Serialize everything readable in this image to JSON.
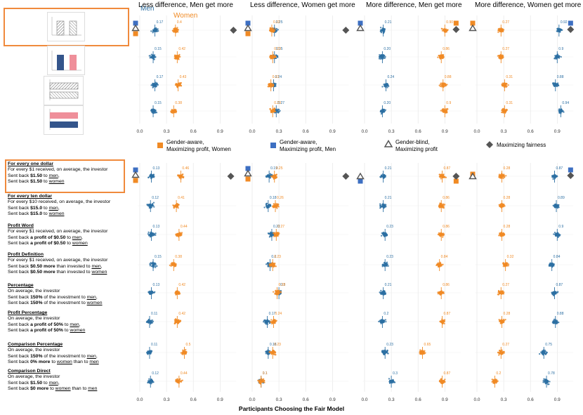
{
  "colors": {
    "women": "#f08a24",
    "men": "#2c6fa3",
    "men_marker": "#3d6fc2",
    "grey": "#555555",
    "highlight": "#f08a3c",
    "bar_blue": "#34558b",
    "bar_pink": "#ef8f9a"
  },
  "legend_top": {
    "men": "Men",
    "women": "Women"
  },
  "xlabel": "Participants Choosing the Fair Model",
  "legend": [
    {
      "marker": "square-orange",
      "line1": "Gender-aware,",
      "line2": "Maximizing profit, Women"
    },
    {
      "marker": "square-blue",
      "line1": "Gender-aware,",
      "line2": "Maximizing profit, Men"
    },
    {
      "marker": "triangle-grey",
      "line1": "Gender-blind,",
      "line2": "Maximizing profit"
    },
    {
      "marker": "diamond-grey",
      "line1": "Maximizing fairness",
      "line2": ""
    }
  ],
  "conditions": [
    {
      "title": "For every one dollar",
      "lines": [
        [
          {
            "t": "For every $1 received, on average, the investor"
          }
        ],
        [
          {
            "t": "Sent back "
          },
          {
            "t": "$1.50",
            "b": true
          },
          {
            "t": " to "
          },
          {
            "t": "men",
            "u": true
          },
          {
            "t": ","
          }
        ],
        [
          {
            "t": "Sent back "
          },
          {
            "t": "$1.50",
            "b": true
          },
          {
            "t": " to "
          },
          {
            "t": "women",
            "u": true
          }
        ]
      ]
    },
    {
      "title": "For every ten dollar",
      "lines": [
        [
          {
            "t": "For every $10 received, on average, the investor"
          }
        ],
        [
          {
            "t": "Sent back "
          },
          {
            "t": "$15.0",
            "b": true
          },
          {
            "t": " to "
          },
          {
            "t": "men",
            "u": true
          },
          {
            "t": ","
          }
        ],
        [
          {
            "t": "Sent back "
          },
          {
            "t": "$15.0",
            "b": true
          },
          {
            "t": " to "
          },
          {
            "t": "women",
            "u": true
          }
        ]
      ]
    },
    {
      "title": "Profit Word",
      "lines": [
        [
          {
            "t": "For every $1 received, on average, the investor"
          }
        ],
        [
          {
            "t": "Sent back "
          },
          {
            "t": "a profit of $0.50",
            "b": true
          },
          {
            "t": " to "
          },
          {
            "t": "men",
            "u": true
          },
          {
            "t": ","
          }
        ],
        [
          {
            "t": "Sent back "
          },
          {
            "t": "a profit of $0.50",
            "b": true
          },
          {
            "t": " to "
          },
          {
            "t": "women",
            "u": true
          }
        ]
      ]
    },
    {
      "title": "Profit Definition",
      "lines": [
        [
          {
            "t": "For every $1 received, on average, the investor"
          }
        ],
        [
          {
            "t": "Sent back "
          },
          {
            "t": "$0.50 more",
            "b": true
          },
          {
            "t": " than invested to "
          },
          {
            "t": "men",
            "u": true
          },
          {
            "t": ","
          }
        ],
        [
          {
            "t": "Sent back "
          },
          {
            "t": "$0.50 more",
            "b": true
          },
          {
            "t": " than invested to "
          },
          {
            "t": "women",
            "u": true
          }
        ]
      ]
    },
    {
      "title": "Percentage",
      "lines": [
        [
          {
            "t": "On average, the investor"
          }
        ],
        [
          {
            "t": "Sent back "
          },
          {
            "t": "150%",
            "b": true
          },
          {
            "t": " of the investment to "
          },
          {
            "t": "men",
            "u": true
          },
          {
            "t": ","
          }
        ],
        [
          {
            "t": "Sent back "
          },
          {
            "t": "150%",
            "b": true
          },
          {
            "t": " of the investment to "
          },
          {
            "t": "women",
            "u": true
          }
        ]
      ]
    },
    {
      "title": "Profit Percentage",
      "lines": [
        [
          {
            "t": "On average, the investor"
          }
        ],
        [
          {
            "t": "Sent back "
          },
          {
            "t": "a profit of 50%",
            "b": true
          },
          {
            "t": " to "
          },
          {
            "t": "men",
            "u": true
          },
          {
            "t": ","
          }
        ],
        [
          {
            "t": "Sent back "
          },
          {
            "t": "a profit of 50%",
            "b": true
          },
          {
            "t": " to "
          },
          {
            "t": "women",
            "u": true
          }
        ]
      ]
    },
    {
      "title": "Comparison Percentage",
      "lines": [
        [
          {
            "t": "On average, the investor"
          }
        ],
        [
          {
            "t": "Sent back "
          },
          {
            "t": "150%",
            "b": true
          },
          {
            "t": " of the investment to "
          },
          {
            "t": "men",
            "u": true
          },
          {
            "t": ","
          }
        ],
        [
          {
            "t": "Sent back "
          },
          {
            "t": "0% more",
            "b": true
          },
          {
            "t": " to "
          },
          {
            "t": "women",
            "u": true
          },
          {
            "t": " than to "
          },
          {
            "t": "men",
            "u": true
          }
        ]
      ]
    },
    {
      "title": "Comparison Direct",
      "lines": [
        [
          {
            "t": "On average, the investor"
          }
        ],
        [
          {
            "t": "Sent back "
          },
          {
            "t": "$1.50",
            "b": true
          },
          {
            "t": " to "
          },
          {
            "t": "men",
            "u": true
          },
          {
            "t": ","
          }
        ],
        [
          {
            "t": "Sent back "
          },
          {
            "t": "$0 more",
            "b": true
          },
          {
            "t": " to "
          },
          {
            "t": "women",
            "u": true
          },
          {
            "t": " than to "
          },
          {
            "t": "men",
            "u": true
          }
        ]
      ]
    }
  ],
  "chart_data": [
    {
      "type": "scatter",
      "title": "Less difference, Men get more",
      "section": "top",
      "xticks": [
        0.0,
        0.3,
        0.6,
        0.9
      ],
      "xtick_labels": [
        "0.0",
        "0.3",
        "0.6",
        "0.9"
      ],
      "xlim": [
        -0.02,
        1.1
      ],
      "rows": [
        {
          "men": 0.17,
          "women": 0.4,
          "women_label": "0.4",
          "fig_markers": true
        },
        {
          "men": 0.15,
          "women": 0.42
        },
        {
          "men": 0.17,
          "women": 0.43
        },
        {
          "men": 0.15,
          "women": 0.38
        }
      ]
    },
    {
      "type": "scatter",
      "title": "Less difference, Women get more",
      "section": "top",
      "xticks": [
        0.0,
        0.3,
        0.6,
        0.9
      ],
      "xtick_labels": [
        "0.0",
        "0.3",
        "0.6",
        "0.9"
      ],
      "xlim": [
        -0.02,
        1.1
      ],
      "rows": [
        {
          "men": 0.25,
          "women": 0.22,
          "fig_markers": true
        },
        {
          "men": 0.25,
          "women": 0.23
        },
        {
          "men": 0.24,
          "women": 0.21
        },
        {
          "men": 0.27,
          "women": 0.23
        }
      ]
    },
    {
      "type": "scatter",
      "title": "More difference, Men get more",
      "section": "top",
      "xticks": [
        0.0,
        0.3,
        0.6,
        0.9
      ],
      "xtick_labels": [
        "0.0",
        "0.3",
        "0.6",
        "0.9"
      ],
      "xlim": [
        -0.02,
        1.1
      ],
      "rows": [
        {
          "men": 0.21,
          "women": 0.9,
          "fig_markers": true
        },
        {
          "men": 0.2,
          "women": 0.86
        },
        {
          "men": 0.24,
          "women": 0.88
        },
        {
          "men": 0.2,
          "women": 0.9,
          "women_label": "0.9"
        }
      ]
    },
    {
      "type": "scatter",
      "title": "More difference, Women get more",
      "section": "top",
      "xticks": [
        0.0,
        0.3,
        0.6,
        0.9
      ],
      "xtick_labels": [
        "0.0",
        "0.3",
        "0.6",
        "0.9"
      ],
      "xlim": [
        -0.02,
        1.1
      ],
      "rows": [
        {
          "men": 0.92,
          "women": 0.27,
          "fig_markers": true
        },
        {
          "men": 0.9,
          "women": 0.27,
          "men_label": "0.9"
        },
        {
          "men": 0.88,
          "women": 0.31
        },
        {
          "men": 0.94,
          "women": 0.31
        }
      ]
    },
    {
      "type": "scatter",
      "title": "",
      "section": "bottom",
      "xticks": [
        0.0,
        0.3,
        0.6,
        0.9
      ],
      "xtick_labels": [
        "0.0",
        "0.3",
        "0.6",
        "0.9"
      ],
      "xlim": [
        -0.02,
        1.1
      ],
      "rows": [
        {
          "men": 0.13,
          "women": 0.46,
          "fig_markers": true
        },
        {
          "men": 0.12,
          "women": 0.41
        },
        {
          "men": 0.13,
          "women": 0.44
        },
        {
          "men": 0.15,
          "women": 0.38
        },
        {
          "men": 0.13,
          "women": 0.42
        },
        {
          "men": 0.11,
          "women": 0.42
        },
        {
          "men": 0.11,
          "women": 0.5,
          "women_label": "0.5"
        },
        {
          "men": 0.12,
          "women": 0.44
        }
      ]
    },
    {
      "type": "scatter",
      "title": "",
      "section": "bottom",
      "xticks": [
        0.0,
        0.3,
        0.6,
        0.9
      ],
      "xtick_labels": [
        "0.0",
        "0.3",
        "0.6",
        "0.9"
      ],
      "xlim": [
        -0.02,
        1.1
      ],
      "rows": [
        {
          "men": 0.19,
          "women": 0.25,
          "fig_markers": true
        },
        {
          "men": 0.18,
          "women": 0.26
        },
        {
          "men": 0.22,
          "women": 0.27
        },
        {
          "men": 0.2,
          "women": 0.23,
          "men_label": "0.2"
        },
        {
          "men": 0.3,
          "women": 0.28,
          "men_label": "0.3"
        },
        {
          "men": 0.17,
          "women": 0.24
        },
        {
          "men": 0.18,
          "women": 0.23
        },
        {
          "men": 0.1,
          "women": 0.1,
          "men_label": "0.1",
          "women_label": "0.1"
        }
      ]
    },
    {
      "type": "scatter",
      "title": "",
      "section": "bottom",
      "xticks": [
        0.0,
        0.3,
        0.6,
        0.9
      ],
      "xtick_labels": [
        "0.0",
        "0.3",
        "0.6",
        "0.9"
      ],
      "xlim": [
        -0.02,
        1.1
      ],
      "rows": [
        {
          "men": 0.21,
          "women": 0.87,
          "fig_markers": true
        },
        {
          "men": 0.21,
          "women": 0.86
        },
        {
          "men": 0.23,
          "women": 0.86
        },
        {
          "men": 0.23,
          "women": 0.84
        },
        {
          "men": 0.21,
          "women": 0.86
        },
        {
          "men": 0.2,
          "women": 0.87,
          "men_label": "0.2"
        },
        {
          "men": 0.23,
          "women": 0.65
        },
        {
          "men": 0.3,
          "women": 0.87,
          "men_label": "0.3"
        }
      ]
    },
    {
      "type": "scatter",
      "title": "",
      "section": "bottom",
      "xticks": [
        0.0,
        0.3,
        0.6,
        0.9
      ],
      "xtick_labels": [
        "0.0",
        "0.3",
        "0.6",
        "0.9"
      ],
      "xlim": [
        -0.02,
        1.1
      ],
      "rows": [
        {
          "men": 0.87,
          "women": 0.28,
          "fig_markers": true
        },
        {
          "men": 0.89,
          "women": 0.28
        },
        {
          "men": 0.9,
          "women": 0.28,
          "men_label": "0.9"
        },
        {
          "men": 0.84,
          "women": 0.32
        },
        {
          "men": 0.87,
          "women": 0.27
        },
        {
          "men": 0.88,
          "women": 0.28
        },
        {
          "men": 0.75,
          "women": 0.27
        },
        {
          "men": 0.78,
          "women": 0.2,
          "women_label": "0.2"
        }
      ]
    }
  ]
}
